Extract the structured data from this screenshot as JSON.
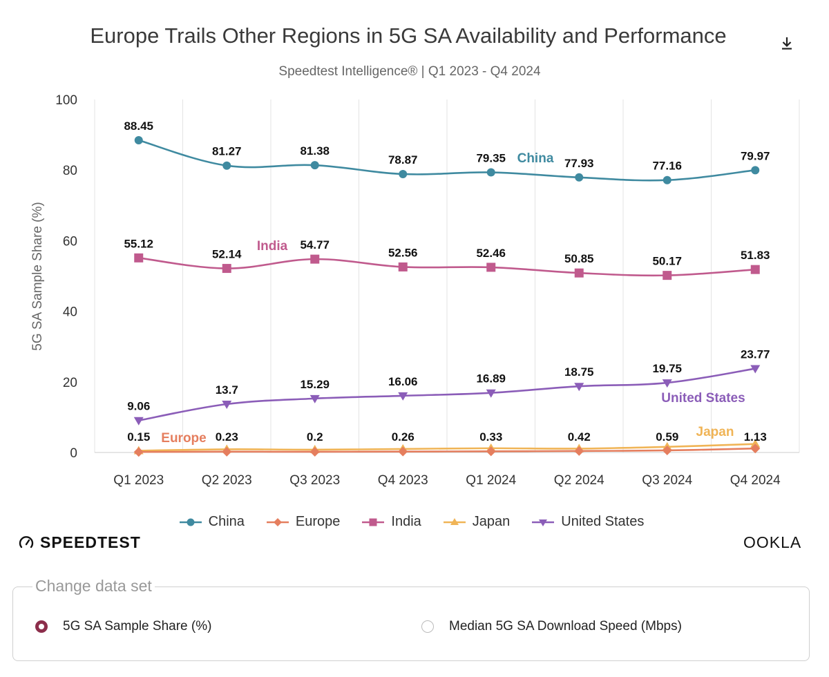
{
  "header": {
    "title": "Europe Trails Other Regions in 5G SA Availability and Performance",
    "subtitle": "Speedtest Intelligence® | Q1 2023 - Q4 2024",
    "download_icon": "download-icon"
  },
  "branding": {
    "speedtest": "SPEEDTEST",
    "ookla": "OOKLA"
  },
  "dataset_selector": {
    "legend": "Change data set",
    "options": [
      {
        "label": "5G SA Sample Share (%)",
        "selected": true
      },
      {
        "label": "Median 5G SA Download Speed (Mbps)",
        "selected": false
      }
    ]
  },
  "chart_data": {
    "type": "line",
    "title": "Europe Trails Other Regions in 5G SA Availability and Performance",
    "subtitle": "Speedtest Intelligence® | Q1 2023 - Q4 2024",
    "xlabel": "",
    "ylabel": "5G SA Sample Share (%)",
    "ylim": [
      0,
      100
    ],
    "yticks": [
      0,
      20,
      40,
      60,
      80,
      100
    ],
    "grid": "vertical",
    "legend_position": "bottom",
    "categories": [
      "Q1 2023",
      "Q2 2023",
      "Q3 2023",
      "Q4 2023",
      "Q1 2024",
      "Q2 2024",
      "Q3 2024",
      "Q4 2024"
    ],
    "series": [
      {
        "name": "China",
        "color": "#3f8aa0",
        "marker": "circle",
        "values": [
          88.45,
          81.27,
          81.38,
          78.87,
          79.35,
          77.93,
          77.16,
          79.97
        ],
        "labels": [
          "88.45",
          "81.27",
          "81.38",
          "78.87",
          "79.35",
          "77.93",
          "77.16",
          "79.97"
        ]
      },
      {
        "name": "Europe",
        "color": "#e57e5e",
        "marker": "diamond",
        "values": [
          0.15,
          0.23,
          0.2,
          0.26,
          0.33,
          0.42,
          0.59,
          1.13
        ],
        "labels": [
          "0.15",
          "0.23",
          "0.2",
          "0.26",
          "0.33",
          "0.42",
          "0.59",
          "1.13"
        ]
      },
      {
        "name": "India",
        "color": "#c05a8d",
        "marker": "square",
        "values": [
          55.12,
          52.14,
          54.77,
          52.56,
          52.46,
          50.85,
          50.17,
          51.83
        ],
        "labels": [
          "55.12",
          "52.14",
          "54.77",
          "52.56",
          "52.46",
          "50.85",
          "50.17",
          "51.83"
        ]
      },
      {
        "name": "Japan",
        "color": "#f0b456",
        "marker": "triangle",
        "values": [
          0.5,
          0.9,
          0.8,
          1.0,
          1.2,
          1.1,
          1.6,
          2.4
        ],
        "labels": []
      },
      {
        "name": "United States",
        "color": "#8b5db8",
        "marker": "triangle-down",
        "values": [
          9.06,
          13.7,
          15.29,
          16.06,
          16.89,
          18.75,
          19.75,
          23.77
        ],
        "labels": [
          "9.06",
          "13.7",
          "15.29",
          "16.06",
          "16.89",
          "18.75",
          "19.75",
          "23.77"
        ]
      }
    ],
    "annotations": [
      {
        "text": "China",
        "series": "China",
        "near": "Q1 2024"
      },
      {
        "text": "India",
        "series": "India",
        "near": "Q2 2023"
      },
      {
        "text": "United States",
        "series": "United States",
        "near": "Q3 2024"
      },
      {
        "text": "Europe",
        "series": "Europe",
        "near": "Q1 2023"
      },
      {
        "text": "Japan",
        "series": "Japan",
        "near": "Q3 2024"
      }
    ]
  }
}
